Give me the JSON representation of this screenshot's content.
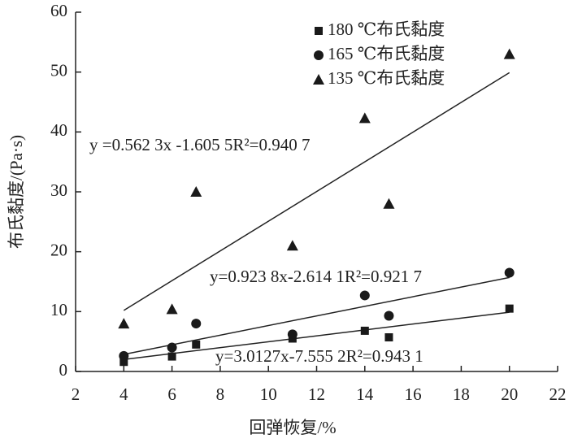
{
  "chart_data": {
    "type": "scatter",
    "x_label": "回弹恢复/%",
    "y_label": "布氏黏度/(Pa·s)",
    "x": [
      4,
      6,
      7,
      11,
      14,
      15,
      20
    ],
    "series": [
      {
        "name": "180 ℃布氏黏度",
        "color": "#1a1a1a",
        "marker": "square",
        "values": [
          1.6,
          2.5,
          4.5,
          5.5,
          6.8,
          5.7,
          10.5
        ],
        "trend": {
          "x": [
            4,
            20
          ],
          "values": [
            2.0,
            9.9
          ]
        }
      },
      {
        "name": "165 ℃布氏黏度",
        "color": "#1a1a1a",
        "marker": "circle",
        "values": [
          2.6,
          4.0,
          8.0,
          6.2,
          12.7,
          9.3,
          16.5
        ],
        "trend": {
          "x": [
            4,
            20
          ],
          "values": [
            2.85,
            15.7
          ]
        }
      },
      {
        "name": "135 ℃布氏黏度",
        "color": "#1a1a1a",
        "marker": "triangle",
        "values": [
          8.0,
          10.4,
          30.0,
          21.0,
          42.3,
          28.0,
          53.0
        ],
        "trend": {
          "x": [
            4,
            20
          ],
          "values": [
            10.2,
            49.9
          ]
        }
      }
    ],
    "annotations": [
      "y=3.0127x-7.555 2R²=0.943 1",
      "y=0.923 8x-2.614 1R²=0.921 7",
      "y =0.562 3x -1.605 5R²=0.940 7"
    ],
    "xlim": [
      2,
      22
    ],
    "xticks": [
      2,
      4,
      6,
      8,
      10,
      12,
      14,
      16,
      18,
      20,
      22
    ],
    "ylim": [
      0,
      60
    ],
    "yticks": [
      0,
      10,
      20,
      30,
      40,
      50,
      60
    ],
    "grid": false,
    "legend": "top-right"
  }
}
